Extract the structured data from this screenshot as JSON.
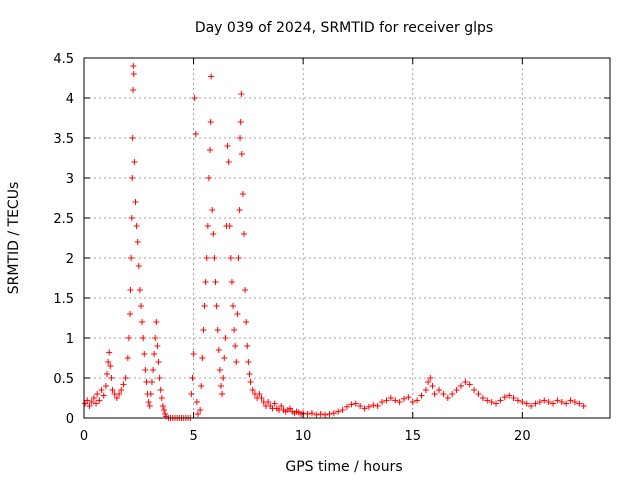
{
  "chart_data": {
    "type": "scatter",
    "title": "Day 039 of 2024, SRMTID for receiver glps",
    "xlabel": "GPS time / hours",
    "ylabel": "SRMTID / TECUs",
    "xlim": [
      0,
      24
    ],
    "ylim": [
      0,
      4.5
    ],
    "xticks": [
      0,
      5,
      10,
      15,
      20
    ],
    "xtick_labels": [
      "0",
      "5",
      "10",
      "15",
      "20"
    ],
    "yticks": [
      0,
      0.5,
      1,
      1.5,
      2,
      2.5,
      3,
      3.5,
      4,
      4.5
    ],
    "ytick_labels": [
      "0",
      "0.5",
      "1",
      "1.5",
      "2",
      "2.5",
      "3",
      "3.5",
      "4",
      "4.5"
    ],
    "grid": true,
    "marker": "+",
    "color": "#ff0000",
    "series": [
      {
        "name": "SRMTID",
        "points": [
          [
            0.05,
            0.18
          ],
          [
            0.15,
            0.22
          ],
          [
            0.25,
            0.15
          ],
          [
            0.35,
            0.2
          ],
          [
            0.45,
            0.25
          ],
          [
            0.55,
            0.18
          ],
          [
            0.6,
            0.3
          ],
          [
            0.7,
            0.22
          ],
          [
            0.8,
            0.35
          ],
          [
            0.9,
            0.28
          ],
          [
            1.0,
            0.4
          ],
          [
            1.05,
            0.55
          ],
          [
            1.1,
            0.7
          ],
          [
            1.15,
            0.82
          ],
          [
            1.2,
            0.65
          ],
          [
            1.25,
            0.5
          ],
          [
            1.3,
            0.35
          ],
          [
            1.4,
            0.3
          ],
          [
            1.5,
            0.25
          ],
          [
            1.6,
            0.3
          ],
          [
            1.7,
            0.35
          ],
          [
            1.8,
            0.42
          ],
          [
            1.9,
            0.5
          ],
          [
            2.0,
            0.75
          ],
          [
            2.05,
            1.0
          ],
          [
            2.1,
            1.3
          ],
          [
            2.12,
            1.6
          ],
          [
            2.15,
            2.0
          ],
          [
            2.18,
            2.5
          ],
          [
            2.2,
            3.0
          ],
          [
            2.22,
            3.5
          ],
          [
            2.24,
            4.1
          ],
          [
            2.25,
            4.4
          ],
          [
            2.27,
            4.3
          ],
          [
            2.3,
            3.2
          ],
          [
            2.35,
            2.7
          ],
          [
            2.4,
            2.4
          ],
          [
            2.45,
            2.2
          ],
          [
            2.5,
            1.9
          ],
          [
            2.55,
            1.6
          ],
          [
            2.6,
            1.4
          ],
          [
            2.65,
            1.2
          ],
          [
            2.7,
            1.0
          ],
          [
            2.75,
            0.8
          ],
          [
            2.8,
            0.6
          ],
          [
            2.85,
            0.45
          ],
          [
            2.9,
            0.3
          ],
          [
            2.95,
            0.2
          ],
          [
            3.0,
            0.15
          ],
          [
            3.05,
            0.3
          ],
          [
            3.1,
            0.45
          ],
          [
            3.15,
            0.6
          ],
          [
            3.2,
            0.8
          ],
          [
            3.25,
            1.0
          ],
          [
            3.3,
            1.2
          ],
          [
            3.35,
            0.9
          ],
          [
            3.4,
            0.7
          ],
          [
            3.45,
            0.5
          ],
          [
            3.5,
            0.35
          ],
          [
            3.55,
            0.25
          ],
          [
            3.6,
            0.15
          ],
          [
            3.65,
            0.1
          ],
          [
            3.7,
            0.05
          ],
          [
            3.75,
            0.02
          ],
          [
            3.85,
            0.0
          ],
          [
            3.95,
            0.0
          ],
          [
            4.05,
            0.0
          ],
          [
            4.15,
            0.0
          ],
          [
            4.25,
            0.0
          ],
          [
            4.35,
            0.0
          ],
          [
            4.45,
            0.0
          ],
          [
            4.55,
            0.0
          ],
          [
            4.65,
            0.0
          ],
          [
            4.75,
            0.0
          ],
          [
            4.85,
            0.0
          ],
          [
            4.9,
            0.3
          ],
          [
            4.95,
            0.5
          ],
          [
            5.0,
            0.8
          ],
          [
            5.05,
            4.0
          ],
          [
            5.1,
            3.55
          ],
          [
            5.15,
            0.2
          ],
          [
            5.2,
            0.05
          ],
          [
            5.3,
            0.1
          ],
          [
            5.35,
            0.4
          ],
          [
            5.4,
            0.75
          ],
          [
            5.45,
            1.1
          ],
          [
            5.5,
            1.4
          ],
          [
            5.55,
            1.7
          ],
          [
            5.6,
            2.0
          ],
          [
            5.65,
            2.4
          ],
          [
            5.7,
            3.0
          ],
          [
            5.75,
            3.35
          ],
          [
            5.78,
            3.7
          ],
          [
            5.8,
            4.27
          ],
          [
            5.85,
            2.6
          ],
          [
            5.9,
            2.3
          ],
          [
            5.95,
            2.0
          ],
          [
            6.0,
            1.7
          ],
          [
            6.05,
            1.4
          ],
          [
            6.1,
            1.1
          ],
          [
            6.15,
            0.85
          ],
          [
            6.2,
            0.6
          ],
          [
            6.25,
            0.4
          ],
          [
            6.3,
            0.3
          ],
          [
            6.35,
            0.5
          ],
          [
            6.4,
            0.75
          ],
          [
            6.45,
            1.0
          ],
          [
            6.5,
            2.4
          ],
          [
            6.55,
            3.4
          ],
          [
            6.6,
            3.2
          ],
          [
            6.65,
            2.4
          ],
          [
            6.7,
            2.0
          ],
          [
            6.75,
            1.7
          ],
          [
            6.8,
            1.4
          ],
          [
            6.85,
            1.1
          ],
          [
            6.9,
            0.9
          ],
          [
            6.95,
            0.7
          ],
          [
            7.0,
            1.3
          ],
          [
            7.05,
            2.0
          ],
          [
            7.1,
            2.6
          ],
          [
            7.12,
            3.5
          ],
          [
            7.15,
            3.7
          ],
          [
            7.18,
            4.05
          ],
          [
            7.2,
            3.3
          ],
          [
            7.25,
            2.8
          ],
          [
            7.3,
            2.3
          ],
          [
            7.35,
            1.6
          ],
          [
            7.4,
            1.2
          ],
          [
            7.45,
            0.9
          ],
          [
            7.5,
            0.7
          ],
          [
            7.55,
            0.55
          ],
          [
            7.6,
            0.45
          ],
          [
            7.7,
            0.35
          ],
          [
            7.8,
            0.3
          ],
          [
            7.9,
            0.25
          ],
          [
            8.0,
            0.3
          ],
          [
            8.1,
            0.25
          ],
          [
            8.2,
            0.2
          ],
          [
            8.3,
            0.15
          ],
          [
            8.4,
            0.2
          ],
          [
            8.5,
            0.15
          ],
          [
            8.6,
            0.12
          ],
          [
            8.7,
            0.18
          ],
          [
            8.8,
            0.12
          ],
          [
            8.9,
            0.1
          ],
          [
            9.0,
            0.15
          ],
          [
            9.1,
            0.1
          ],
          [
            9.2,
            0.08
          ],
          [
            9.3,
            0.1
          ],
          [
            9.4,
            0.12
          ],
          [
            9.5,
            0.08
          ],
          [
            9.6,
            0.06
          ],
          [
            9.7,
            0.08
          ],
          [
            9.8,
            0.07
          ],
          [
            9.9,
            0.05
          ],
          [
            10.0,
            0.06
          ],
          [
            10.2,
            0.05
          ],
          [
            10.4,
            0.06
          ],
          [
            10.6,
            0.04
          ],
          [
            10.8,
            0.05
          ],
          [
            11.0,
            0.04
          ],
          [
            11.2,
            0.05
          ],
          [
            11.4,
            0.06
          ],
          [
            11.6,
            0.08
          ],
          [
            11.8,
            0.1
          ],
          [
            12.0,
            0.14
          ],
          [
            12.2,
            0.17
          ],
          [
            12.4,
            0.18
          ],
          [
            12.6,
            0.15
          ],
          [
            12.8,
            0.12
          ],
          [
            13.0,
            0.14
          ],
          [
            13.2,
            0.16
          ],
          [
            13.4,
            0.15
          ],
          [
            13.6,
            0.2
          ],
          [
            13.8,
            0.22
          ],
          [
            14.0,
            0.25
          ],
          [
            14.2,
            0.22
          ],
          [
            14.4,
            0.2
          ],
          [
            14.6,
            0.24
          ],
          [
            14.8,
            0.26
          ],
          [
            15.0,
            0.2
          ],
          [
            15.2,
            0.22
          ],
          [
            15.4,
            0.28
          ],
          [
            15.6,
            0.35
          ],
          [
            15.7,
            0.45
          ],
          [
            15.8,
            0.5
          ],
          [
            15.9,
            0.4
          ],
          [
            16.0,
            0.3
          ],
          [
            16.2,
            0.35
          ],
          [
            16.4,
            0.3
          ],
          [
            16.6,
            0.25
          ],
          [
            16.8,
            0.3
          ],
          [
            17.0,
            0.35
          ],
          [
            17.2,
            0.4
          ],
          [
            17.4,
            0.45
          ],
          [
            17.6,
            0.42
          ],
          [
            17.8,
            0.35
          ],
          [
            18.0,
            0.3
          ],
          [
            18.2,
            0.25
          ],
          [
            18.4,
            0.22
          ],
          [
            18.6,
            0.2
          ],
          [
            18.8,
            0.18
          ],
          [
            19.0,
            0.22
          ],
          [
            19.2,
            0.26
          ],
          [
            19.4,
            0.28
          ],
          [
            19.6,
            0.25
          ],
          [
            19.8,
            0.22
          ],
          [
            20.0,
            0.2
          ],
          [
            20.2,
            0.18
          ],
          [
            20.4,
            0.15
          ],
          [
            20.6,
            0.18
          ],
          [
            20.8,
            0.2
          ],
          [
            21.0,
            0.22
          ],
          [
            21.2,
            0.2
          ],
          [
            21.4,
            0.18
          ],
          [
            21.6,
            0.22
          ],
          [
            21.8,
            0.2
          ],
          [
            22.0,
            0.18
          ],
          [
            22.2,
            0.22
          ],
          [
            22.4,
            0.2
          ],
          [
            22.6,
            0.18
          ],
          [
            22.8,
            0.15
          ]
        ]
      }
    ]
  }
}
